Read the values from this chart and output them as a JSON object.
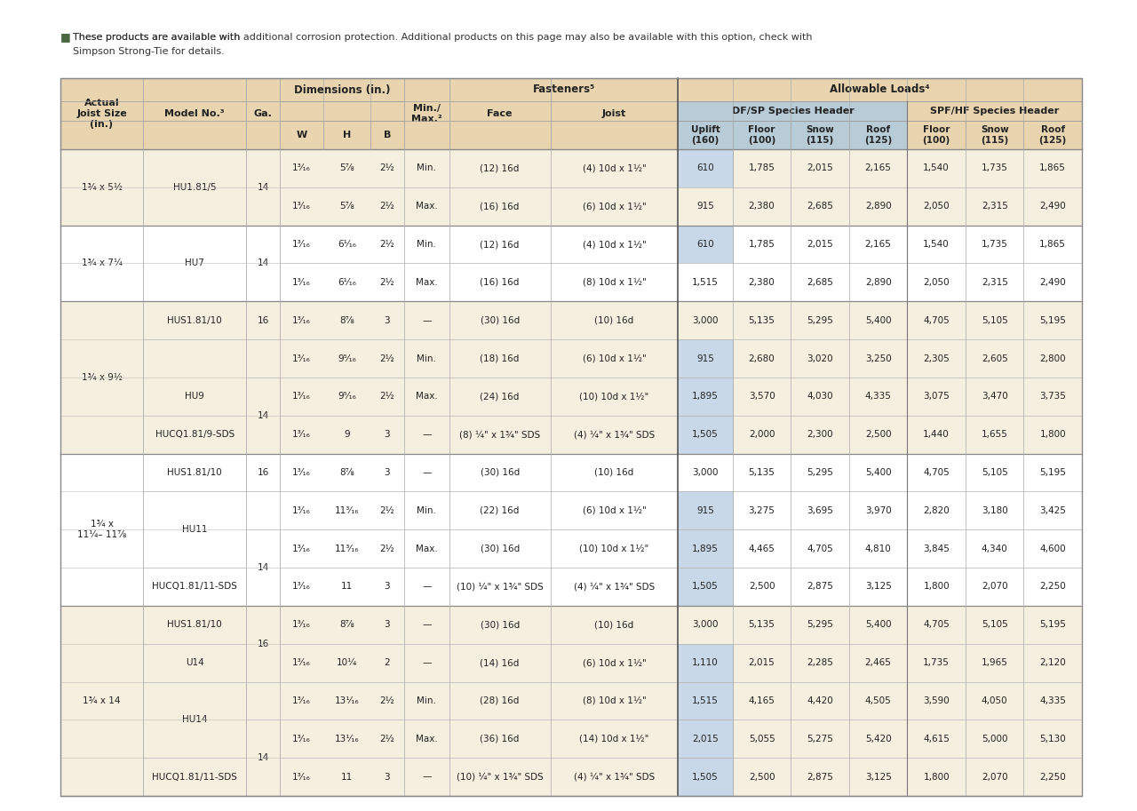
{
  "header_bg": "#e8d5b0",
  "subheader_bg": "#b8ccd8",
  "white_bg": "#ffffff",
  "alt_bg": "#f5efe0",
  "rows": [
    {
      "joist_group": "1¾ x 5½",
      "joist_rows": 2,
      "model_group": "HU1.81/5",
      "model_rows": 2,
      "ga_val": "14",
      "ga_rows": 2,
      "w": "1³⁄₁₆",
      "h": "5⅞",
      "b": "2½",
      "minmax": "Min.",
      "face": "(12) 16d",
      "joist_col": "(4) 10d x 1½\"",
      "uplift": "610",
      "floor1": "1,785",
      "snow1": "2,015",
      "roof1": "2,165",
      "floor2": "1,540",
      "snow2": "1,735",
      "roof2": "1,865",
      "alt": true,
      "group_start": true
    },
    {
      "joist_group": "",
      "joist_rows": 0,
      "model_group": "",
      "model_rows": 0,
      "ga_val": "",
      "ga_rows": 0,
      "w": "1³⁄₁₆",
      "h": "5⅞",
      "b": "2½",
      "minmax": "Max.",
      "face": "(16) 16d",
      "joist_col": "(6) 10d x 1½\"",
      "uplift": "915",
      "floor1": "2,380",
      "snow1": "2,685",
      "roof1": "2,890",
      "floor2": "2,050",
      "snow2": "2,315",
      "roof2": "2,490",
      "alt": true,
      "group_start": false
    },
    {
      "joist_group": "1¾ x 7¼",
      "joist_rows": 2,
      "model_group": "HU7",
      "model_rows": 2,
      "ga_val": "14",
      "ga_rows": 2,
      "w": "1³⁄₁₆",
      "h": "6¹⁄₁₆",
      "b": "2½",
      "minmax": "Min.",
      "face": "(12) 16d",
      "joist_col": "(4) 10d x 1½\"",
      "uplift": "610",
      "floor1": "1,785",
      "snow1": "2,015",
      "roof1": "2,165",
      "floor2": "1,540",
      "snow2": "1,735",
      "roof2": "1,865",
      "alt": false,
      "group_start": true
    },
    {
      "joist_group": "",
      "joist_rows": 0,
      "model_group": "",
      "model_rows": 0,
      "ga_val": "",
      "ga_rows": 0,
      "w": "1³⁄₁₆",
      "h": "6¹⁄₁₆",
      "b": "2½",
      "minmax": "Max.",
      "face": "(16) 16d",
      "joist_col": "(8) 10d x 1½\"",
      "uplift": "1,515",
      "floor1": "2,380",
      "snow1": "2,685",
      "roof1": "2,890",
      "floor2": "2,050",
      "snow2": "2,315",
      "roof2": "2,490",
      "alt": false,
      "group_start": false
    },
    {
      "joist_group": "1¾ x 9½",
      "joist_rows": 4,
      "model_group": "HUS1.81/10",
      "model_rows": 1,
      "ga_val": "16",
      "ga_rows": 1,
      "w": "1³⁄₁₆",
      "h": "8⅞",
      "b": "3",
      "minmax": "—",
      "face": "(30) 16d",
      "joist_col": "(10) 16d",
      "uplift": "3,000",
      "floor1": "5,135",
      "snow1": "5,295",
      "roof1": "5,400",
      "floor2": "4,705",
      "snow2": "5,105",
      "roof2": "5,195",
      "alt": true,
      "group_start": true
    },
    {
      "joist_group": "",
      "joist_rows": 0,
      "model_group": "HU9",
      "model_rows": 3,
      "ga_val": "",
      "ga_rows": 0,
      "w": "1³⁄₁₆",
      "h": "9⁵⁄₁₆",
      "b": "2½",
      "minmax": "Min.",
      "face": "(18) 16d",
      "joist_col": "(6) 10d x 1½\"",
      "uplift": "915",
      "floor1": "2,680",
      "snow1": "3,020",
      "roof1": "3,250",
      "floor2": "2,305",
      "snow2": "2,605",
      "roof2": "2,800",
      "alt": true,
      "group_start": false
    },
    {
      "joist_group": "",
      "joist_rows": 0,
      "model_group": "",
      "model_rows": 0,
      "ga_val": "14",
      "ga_rows": 2,
      "w": "1³⁄₁₆",
      "h": "9⁵⁄₁₆",
      "b": "2½",
      "minmax": "Max.",
      "face": "(24) 16d",
      "joist_col": "(10) 10d x 1½\"",
      "uplift": "1,895",
      "floor1": "3,570",
      "snow1": "4,030",
      "roof1": "4,335",
      "floor2": "3,075",
      "snow2": "3,470",
      "roof2": "3,735",
      "alt": true,
      "group_start": false
    },
    {
      "joist_group": "",
      "joist_rows": 0,
      "model_group": "HUCQ1.81/9-SDS",
      "model_rows": 1,
      "ga_val": "",
      "ga_rows": 0,
      "w": "1³⁄₁₆",
      "h": "9",
      "b": "3",
      "minmax": "—",
      "face": "(8) ¼\" x 1¾\" SDS",
      "joist_col": "(4) ¼\" x 1¾\" SDS",
      "uplift": "1,505",
      "floor1": "2,000",
      "snow1": "2,300",
      "roof1": "2,500",
      "floor2": "1,440",
      "snow2": "1,655",
      "roof2": "1,800",
      "alt": true,
      "group_start": false
    },
    {
      "joist_group": "1¾ x\n11¼– 11⅞",
      "joist_rows": 4,
      "model_group": "HUS1.81/10",
      "model_rows": 1,
      "ga_val": "16",
      "ga_rows": 1,
      "w": "1³⁄₁₆",
      "h": "8⅞",
      "b": "3",
      "minmax": "—",
      "face": "(30) 16d",
      "joist_col": "(10) 16d",
      "uplift": "3,000",
      "floor1": "5,135",
      "snow1": "5,295",
      "roof1": "5,400",
      "floor2": "4,705",
      "snow2": "5,105",
      "roof2": "5,195",
      "alt": false,
      "group_start": true
    },
    {
      "joist_group": "",
      "joist_rows": 0,
      "model_group": "HU11",
      "model_rows": 2,
      "ga_val": "",
      "ga_rows": 0,
      "w": "1³⁄₁₆",
      "h": "11³⁄₁₆",
      "b": "2½",
      "minmax": "Min.",
      "face": "(22) 16d",
      "joist_col": "(6) 10d x 1½\"",
      "uplift": "915",
      "floor1": "3,275",
      "snow1": "3,695",
      "roof1": "3,970",
      "floor2": "2,820",
      "snow2": "3,180",
      "roof2": "3,425",
      "alt": false,
      "group_start": false
    },
    {
      "joist_group": "",
      "joist_rows": 0,
      "model_group": "",
      "model_rows": 0,
      "ga_val": "14",
      "ga_rows": 2,
      "w": "1³⁄₁₆",
      "h": "11³⁄₁₆",
      "b": "2½",
      "minmax": "Max.",
      "face": "(30) 16d",
      "joist_col": "(10) 10d x 1½\"",
      "uplift": "1,895",
      "floor1": "4,465",
      "snow1": "4,705",
      "roof1": "4,810",
      "floor2": "3,845",
      "snow2": "4,340",
      "roof2": "4,600",
      "alt": false,
      "group_start": false
    },
    {
      "joist_group": "",
      "joist_rows": 0,
      "model_group": "HUCQ1.81/11-SDS",
      "model_rows": 1,
      "ga_val": "",
      "ga_rows": 0,
      "w": "1³⁄₁₆",
      "h": "11",
      "b": "3",
      "minmax": "—",
      "face": "(10) ¼\" x 1¾\" SDS",
      "joist_col": "(4) ¼\" x 1¾\" SDS",
      "uplift": "1,505",
      "floor1": "2,500",
      "snow1": "2,875",
      "roof1": "3,125",
      "floor2": "1,800",
      "snow2": "2,070",
      "roof2": "2,250",
      "alt": false,
      "group_start": false
    },
    {
      "joist_group": "1¾ x 14",
      "joist_rows": 5,
      "model_group": "HUS1.81/10",
      "model_rows": 1,
      "ga_val": "16",
      "ga_rows": 2,
      "w": "1³⁄₁₆",
      "h": "8⅞",
      "b": "3",
      "minmax": "—",
      "face": "(30) 16d",
      "joist_col": "(10) 16d",
      "uplift": "3,000",
      "floor1": "5,135",
      "snow1": "5,295",
      "roof1": "5,400",
      "floor2": "4,705",
      "snow2": "5,105",
      "roof2": "5,195",
      "alt": true,
      "group_start": true
    },
    {
      "joist_group": "",
      "joist_rows": 0,
      "model_group": "U14",
      "model_rows": 1,
      "ga_val": "",
      "ga_rows": 0,
      "w": "1³⁄₁₆",
      "h": "10¼",
      "b": "2",
      "minmax": "—",
      "face": "(14) 16d",
      "joist_col": "(6) 10d x 1½\"",
      "uplift": "1,110",
      "floor1": "2,015",
      "snow1": "2,285",
      "roof1": "2,465",
      "floor2": "1,735",
      "snow2": "1,965",
      "roof2": "2,120",
      "alt": true,
      "group_start": false
    },
    {
      "joist_group": "",
      "joist_rows": 0,
      "model_group": "HU14",
      "model_rows": 2,
      "ga_val": "",
      "ga_rows": 0,
      "w": "1³⁄₁₆",
      "h": "13¹⁄₁₆",
      "b": "2½",
      "minmax": "Min.",
      "face": "(28) 16d",
      "joist_col": "(8) 10d x 1½\"",
      "uplift": "1,515",
      "floor1": "4,165",
      "snow1": "4,420",
      "roof1": "4,505",
      "floor2": "3,590",
      "snow2": "4,050",
      "roof2": "4,335",
      "alt": true,
      "group_start": false
    },
    {
      "joist_group": "",
      "joist_rows": 0,
      "model_group": "",
      "model_rows": 0,
      "ga_val": "14",
      "ga_rows": 2,
      "w": "1³⁄₁₆",
      "h": "13¹⁄₁₆",
      "b": "2½",
      "minmax": "Max.",
      "face": "(36) 16d",
      "joist_col": "(14) 10d x 1½\"",
      "uplift": "2,015",
      "floor1": "5,055",
      "snow1": "5,275",
      "roof1": "5,420",
      "floor2": "4,615",
      "snow2": "5,000",
      "roof2": "5,130",
      "alt": true,
      "group_start": false
    },
    {
      "joist_group": "",
      "joist_rows": 0,
      "model_group": "HUCQ1.81/11-SDS",
      "model_rows": 1,
      "ga_val": "",
      "ga_rows": 0,
      "w": "1³⁄₁₆",
      "h": "11",
      "b": "3",
      "minmax": "—",
      "face": "(10) ¼\" x 1¾\" SDS",
      "joist_col": "(4) ¼\" x 1¾\" SDS",
      "uplift": "1,505",
      "floor1": "2,500",
      "snow1": "2,875",
      "roof1": "3,125",
      "floor2": "1,800",
      "snow2": "2,070",
      "roof2": "2,250",
      "alt": true,
      "group_start": false
    }
  ],
  "uplift_blue_rows": [
    0,
    2,
    5,
    6,
    7,
    9,
    10,
    11,
    13,
    14,
    15,
    16
  ],
  "group_borders": [
    0,
    2,
    4,
    8,
    12
  ]
}
